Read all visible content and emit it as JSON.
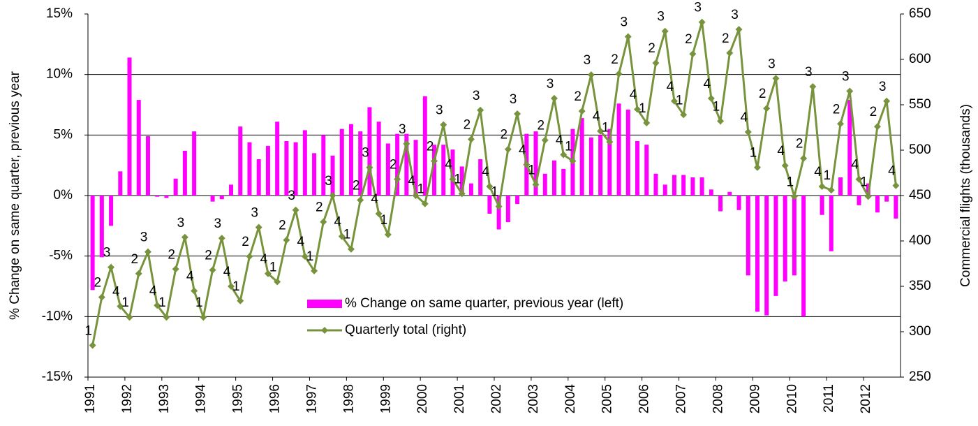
{
  "chart_data": {
    "type": "bar_line",
    "y_label": "% Change on same quarter, previous year",
    "y2_label": "Commercial flights (thousands)",
    "years": [
      "1991",
      "1992",
      "1993",
      "1994",
      "1995",
      "1996",
      "1997",
      "1998",
      "1999",
      "2000",
      "2001",
      "2002",
      "2003",
      "2004",
      "2005",
      "2006",
      "2007",
      "2008",
      "2009",
      "2010",
      "2011",
      "2012"
    ],
    "ylim": [
      -15,
      15
    ],
    "yticks": [
      {
        "value": -15,
        "label": "-15%"
      },
      {
        "value": -10,
        "label": "-10%"
      },
      {
        "value": -5,
        "label": "-5%"
      },
      {
        "value": 0,
        "label": "0%"
      },
      {
        "value": 5,
        "label": "5%"
      },
      {
        "value": 10,
        "label": "10%"
      },
      {
        "value": 15,
        "label": "15%"
      }
    ],
    "y2lim": [
      250,
      650
    ],
    "y2ticks": [
      250,
      300,
      350,
      400,
      450,
      500,
      550,
      600,
      650
    ],
    "grid": true,
    "series": [
      {
        "name": "% Change on same quarter, previous year (left)",
        "type": "bar",
        "color": "#ff00ff",
        "values": [
          -7.8,
          -5.1,
          -2.5,
          2.0,
          11.4,
          7.9,
          4.9,
          -0.1,
          -0.2,
          1.4,
          3.7,
          5.3,
          0,
          -0.5,
          -0.3,
          0.9,
          5.7,
          4.4,
          3.0,
          4.1,
          6.1,
          4.5,
          4.4,
          5.4,
          3.5,
          5.0,
          3.3,
          5.5,
          5.9,
          5.3,
          7.3,
          6.1,
          4.3,
          5.1,
          5.1,
          4.6,
          8.2,
          4.2,
          4.2,
          3.8,
          2.4,
          1.0,
          3.0,
          -1.5,
          -2.8,
          -2.2,
          -0.7,
          5.1,
          5.3,
          1.8,
          2.9,
          2.2,
          5.5,
          6.4,
          4.8,
          5.0,
          5.5,
          7.6,
          7.1,
          4.5,
          4.2,
          1.8,
          0.9,
          1.7,
          1.7,
          1.5,
          1.5,
          0.5,
          -1.3,
          0.3,
          -1.2,
          -6.6,
          -9.6,
          -9.9,
          -8.3,
          -7.1,
          -6.6,
          -10.0,
          0,
          -1.6,
          -4.6,
          1.5,
          7.9,
          -0.8,
          1.0,
          -1.4,
          -0.5,
          -1.9
        ]
      },
      {
        "name": "Quarterly total (right)",
        "type": "line",
        "axis": "y2",
        "color": "#77933c",
        "values": [
          285,
          338,
          371,
          328,
          316,
          364,
          388,
          329,
          316,
          369,
          404,
          345,
          316,
          368,
          403,
          350,
          334,
          383,
          415,
          364,
          355,
          401,
          434,
          383,
          367,
          421,
          450,
          405,
          391,
          445,
          481,
          430,
          407,
          468,
          507,
          450,
          441,
          488,
          528,
          468,
          452,
          512,
          544,
          460,
          438,
          501,
          540,
          484,
          462,
          511,
          557,
          495,
          488,
          543,
          583,
          521,
          509,
          584,
          625,
          545,
          530,
          596,
          631,
          554,
          539,
          606,
          641,
          557,
          532,
          607,
          633,
          520,
          481,
          546,
          579,
          483,
          449,
          491,
          570,
          460,
          456,
          529,
          565,
          468,
          449,
          526,
          554,
          461
        ],
        "point_labels": [
          "1",
          "2",
          "3",
          "4",
          "1",
          "2",
          "3",
          "4",
          "1",
          "2",
          "3",
          "4",
          "1",
          "2",
          "3",
          "4",
          "1",
          "2",
          "3",
          "4",
          "1",
          "2",
          "3",
          "4",
          "1",
          "2",
          "3",
          "4",
          "1",
          "2",
          "3",
          "4",
          "1",
          "2",
          "3",
          "4",
          "1",
          "2",
          "3",
          "4",
          "1",
          "2",
          "3",
          "4",
          "1",
          "2",
          "3",
          "4",
          "1",
          "2",
          "3",
          "4",
          "1",
          "2",
          "3",
          "4",
          "1",
          "2",
          "3",
          "4",
          "1",
          "2",
          "3",
          "4",
          "1",
          "2",
          "3",
          "4",
          "1",
          "2",
          "3",
          "4",
          "1",
          "2",
          "3",
          "4",
          "1",
          "2",
          "3",
          "4",
          "1",
          "2",
          "3",
          "4",
          "1",
          "2",
          "3",
          "4"
        ]
      }
    ]
  }
}
